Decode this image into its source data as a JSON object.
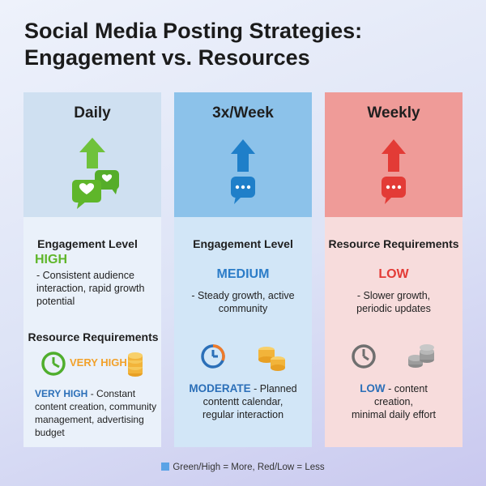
{
  "title_line1": "Social Media Posting Strategies:",
  "title_line2": "Engagement vs. Resources",
  "colors": {
    "high_green": "#5fb62a",
    "very_high_orange": "#f2a12a",
    "medium_blue": "#2b7cc8",
    "low_red": "#e33b36",
    "low_blue": "#2b6fb8"
  },
  "columns": [
    {
      "heading": "Daily",
      "icons": [
        "green-up-arrow-icon",
        "heart-chat-bubbles-icon"
      ],
      "section1_label": "Engagement Level",
      "section1_level": "HIGH",
      "section1_desc": "- Consistent audience interaction, rapid growth potential",
      "section2_label": "Resource Requirements",
      "section2_badge": "VERY HIGH",
      "section2_icons": [
        "clock-icon",
        "coin-stack-icon"
      ],
      "section2_level": "VERY HIGH",
      "section2_desc": " - Constant content creation, community management, advertising budget"
    },
    {
      "heading": "3x/Week",
      "icons": [
        "blue-up-arrow-icon",
        "chat-bubble-icon"
      ],
      "section1_label": "Engagement Level",
      "section1_level": "MEDIUM",
      "section1_desc": "- Steady growth, active community",
      "section2_icons": [
        "progress-clock-icon",
        "coin-stack-icon"
      ],
      "section2_level": "MODERATE",
      "section2_desc_a": " - Planned",
      "section2_desc_b": "contentt calendar,",
      "section2_desc_c": "regular interaction"
    },
    {
      "heading": "Weekly",
      "icons": [
        "red-up-arrow-icon",
        "chat-bubble-icon"
      ],
      "section1_label": "Resource Requirements",
      "section1_level": "LOW",
      "section1_desc_a": "- Slower growth,",
      "section1_desc_b": "periodic updates",
      "section2_icons": [
        "gray-clock-icon",
        "gray-coin-stack-icon"
      ],
      "section2_level": "LOW",
      "section2_desc_a": " - content",
      "section2_desc_b": "creation,",
      "section2_desc_c": "minimal daily effort"
    }
  ],
  "legend": "Green/High = More, Red/Low = Less"
}
